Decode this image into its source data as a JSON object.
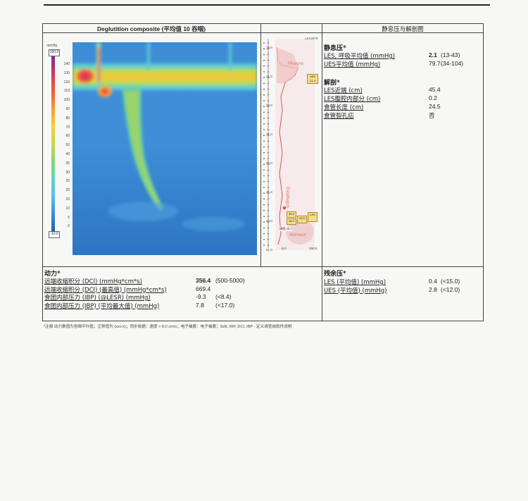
{
  "header": {
    "plot_title": "Deglutition composite (平均值 10 吞咽)",
    "right_title": "静息压与解剖图"
  },
  "plot": {
    "unit": "mmHg",
    "scale_top": "150.0",
    "scale_bottom": "-10.0",
    "ticks": [
      "140",
      "130",
      "120",
      "110",
      "100",
      "90",
      "80",
      "70",
      "60",
      "50",
      "40",
      "35",
      "30",
      "25",
      "20",
      "15",
      "10",
      "5",
      "0"
    ],
    "colormap": [
      "#1f5fae",
      "#3f8fd8",
      "#5fbde8",
      "#5fd6c0",
      "#8fd27a",
      "#c9d84a",
      "#f1d23a",
      "#f59e35",
      "#ec5b3e",
      "#d23a5c",
      "#7b2e8f"
    ]
  },
  "profile": {
    "id_label": "LES3679",
    "ylabels": [
      "16.0",
      "21.0",
      "26.0",
      "31.0",
      "36.0",
      "41.0",
      "46.0",
      "51.0"
    ],
    "xlabels": [
      "-5.0",
      "150.0"
    ],
    "pharynx": "Pharynx",
    "esophagus": "Esophagus",
    "stomach": "Stomach",
    "ues_badge": [
      "UES",
      "21.4"
    ],
    "les_badges": [
      "45.4",
      "46.0",
      "45.5"
    ],
    "les_label": "LES",
    "hiatus_label": "横膈 46.0"
  },
  "resting": {
    "title": "静息压*",
    "rows": [
      {
        "label": "LES, 呼吸平均值 (mmHg)",
        "value": "2.1",
        "range": "(13-43)"
      },
      {
        "label": "UES平均值 (mmHg)",
        "value": "79.7",
        "range": "(34-104)"
      }
    ]
  },
  "anatomy": {
    "title": "解剖*",
    "rows": [
      {
        "label": "LES近端 (cm)",
        "value": "45.4"
      },
      {
        "label": "LES腹腔内部分 (cm)",
        "value": "0.2"
      },
      {
        "label": "食管长度 (cm)",
        "value": "24.5"
      },
      {
        "label": "食管裂孔疝",
        "value": "否"
      }
    ]
  },
  "motility": {
    "title": "动力*",
    "rows": [
      {
        "label": "远端收缩积分 (DCI) (mmHg*cm*s)",
        "value": "356.4",
        "range": "(500-5000)"
      },
      {
        "label": "远端收缩积分 (DCI) (最高值) (mmHg*cm*s)",
        "value": "669.4",
        "range": ""
      },
      {
        "label": "食团内部压力 (IBP) (@LESR) (mmHg)",
        "value": "-9.3",
        "range": "(<8.4)"
      },
      {
        "label": "食团内部压力 (IBP) (平均最大值) (mmHg)",
        "value": "7.8",
        "range": "(<17.0)"
      }
    ]
  },
  "residual": {
    "title": "残余压*",
    "rows": [
      {
        "label": "LES (平均值) (mmHg)",
        "value": "0.4",
        "range": "(<15.0)"
      },
      {
        "label": "UES (平均值) (mmHg)",
        "value": "2.8",
        "range": "(<12.0)"
      }
    ]
  },
  "footnote": "*注释  动力数值为吞咽平均值；正常值为 (xxx:x)；同步收缩：速度 > 8.0 cm/s；电子袖套：电子袖套；3sN, IRP, DCI, IBP - 定义请查询软件说明"
}
